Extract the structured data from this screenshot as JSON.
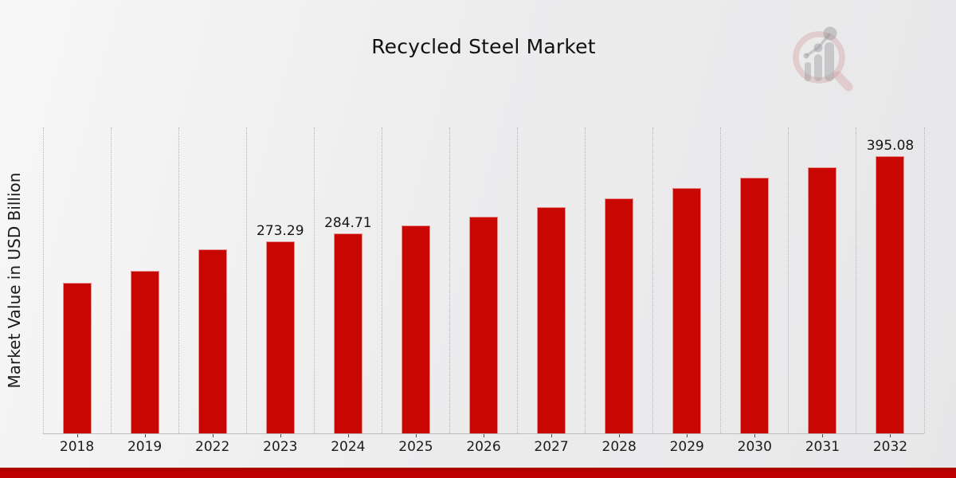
{
  "chart_data": {
    "type": "bar",
    "title": "Recycled Steel Market",
    "ylabel": "Market Value in USD Billion",
    "xlabel": "",
    "categories": [
      "2018",
      "2019",
      "2022",
      "2023",
      "2024",
      "2025",
      "2026",
      "2027",
      "2028",
      "2029",
      "2030",
      "2031",
      "2032"
    ],
    "values": [
      215.0,
      232.0,
      262.33,
      273.29,
      284.71,
      296.62,
      309.02,
      321.94,
      335.4,
      349.42,
      364.03,
      379.25,
      395.08
    ],
    "value_labels_shown": {
      "2023": "273.29",
      "2024": "284.71",
      "2032": "395.08"
    },
    "ylim": [
      0,
      436
    ],
    "grid": "vertical-dotted",
    "legend": "none",
    "bar_color": "#c80702"
  },
  "colors": {
    "bar": "#c80702",
    "footer_accent": "#bf0000",
    "background": "#ececed",
    "gridline": "#b4b4b6",
    "text": "#1a1a1a"
  },
  "branding": {
    "watermark_icon": "magnifier-bar-chart-logo"
  }
}
